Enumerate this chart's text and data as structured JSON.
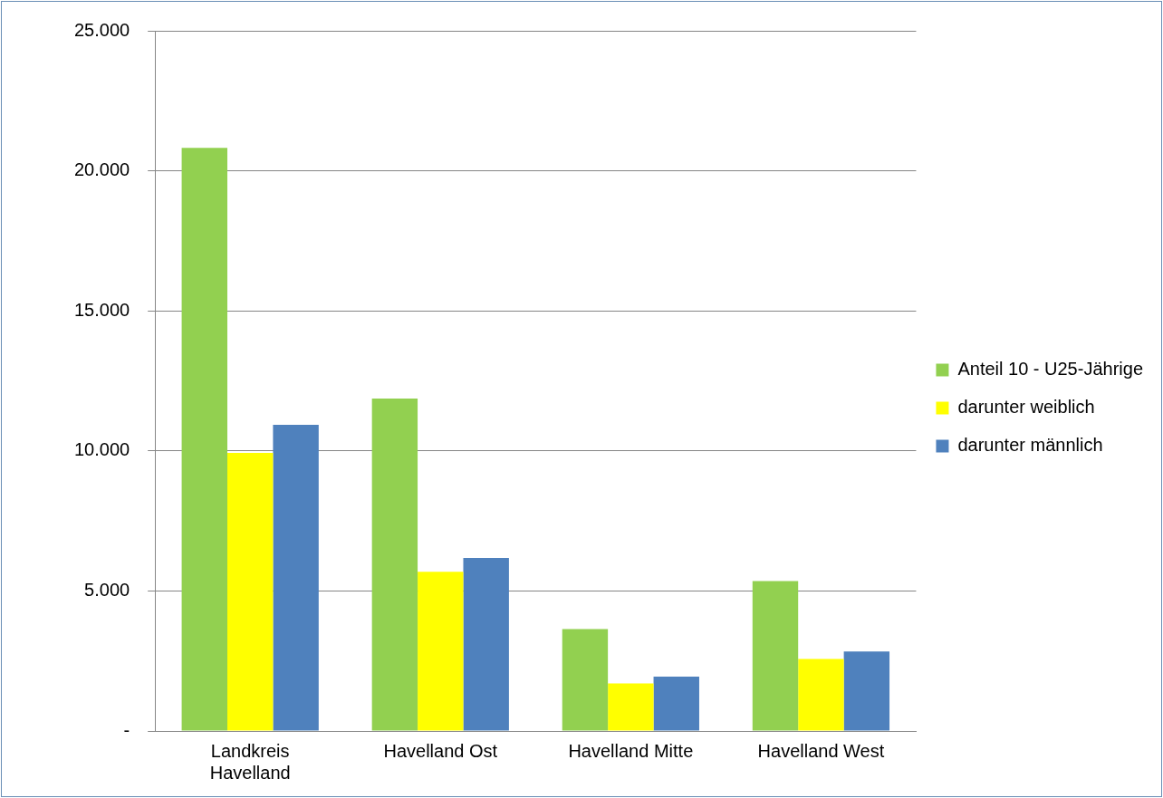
{
  "chart_data": {
    "type": "bar",
    "categories": [
      "Landkreis Havelland",
      "Havelland Ost",
      "Havelland Mitte",
      "Havelland West"
    ],
    "series": [
      {
        "name": "Anteil 10 - U25-Jährige",
        "color": "#92d050",
        "values": [
          20820,
          11870,
          3640,
          5350
        ]
      },
      {
        "name": "darunter weiblich",
        "color": "#ffff00",
        "values": [
          9930,
          5680,
          1700,
          2570
        ]
      },
      {
        "name": "darunter männlich",
        "color": "#4f81bd",
        "values": [
          10930,
          6180,
          1940,
          2840
        ]
      }
    ],
    "ylim": [
      0,
      25000
    ],
    "yticks": [
      {
        "value": 0,
        "label": "-"
      },
      {
        "value": 5000,
        "label": "5.000"
      },
      {
        "value": 10000,
        "label": "10.000"
      },
      {
        "value": 15000,
        "label": "15.000"
      },
      {
        "value": 20000,
        "label": "20.000"
      },
      {
        "value": 25000,
        "label": "25.000"
      }
    ],
    "grid": "y",
    "legend": "right"
  }
}
